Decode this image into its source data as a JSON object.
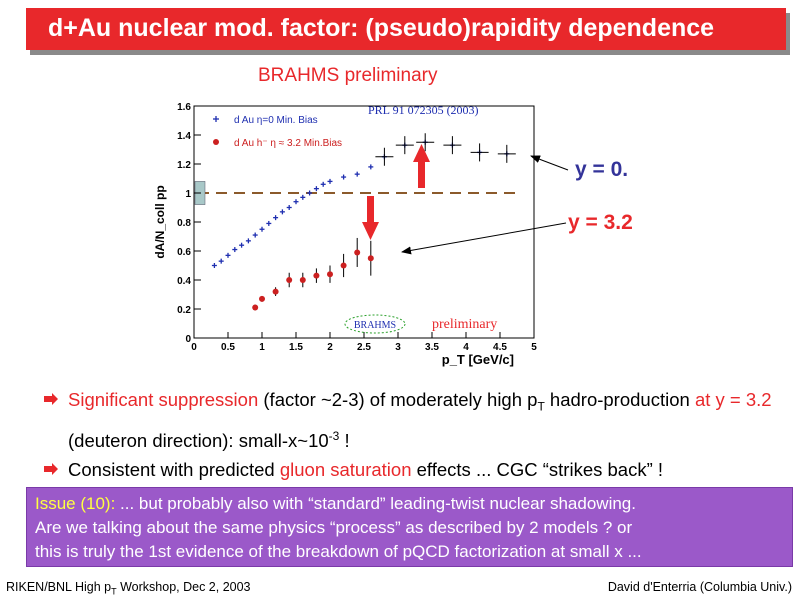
{
  "title": "d+Au nuclear mod. factor: (pseudo)rapidity dependence",
  "brahms_preliminary": "BRAHMS preliminary",
  "chart_data": {
    "type": "scatter",
    "xlabel": "p_T [GeV/c]",
    "ylabel": "dA/N_coll pp",
    "xlim": [
      0,
      5
    ],
    "ylim": [
      0,
      1.6
    ],
    "x_ticks": [
      "0",
      "0.5",
      "1",
      "1.5",
      "2",
      "2.5",
      "3",
      "3.5",
      "4",
      "4.5",
      "5"
    ],
    "y_ticks": [
      "0",
      "0.2",
      "0.4",
      "0.6",
      "0.8",
      "1",
      "1.2",
      "1.4",
      "1.6"
    ],
    "reference_line": 1.0,
    "annotation_ref": "PRL 91 072305 (2003)",
    "watermark_logo": "BRAHMS",
    "watermark_text": "preliminary",
    "series": [
      {
        "name": "d Au η=0 Min. Bias",
        "color": "#1f2fb0",
        "marker": "star",
        "points": [
          [
            0.3,
            0.5
          ],
          [
            0.4,
            0.53
          ],
          [
            0.5,
            0.57
          ],
          [
            0.6,
            0.61
          ],
          [
            0.7,
            0.64
          ],
          [
            0.8,
            0.67
          ],
          [
            0.9,
            0.71
          ],
          [
            1.0,
            0.75
          ],
          [
            1.1,
            0.79
          ],
          [
            1.2,
            0.83
          ],
          [
            1.3,
            0.87
          ],
          [
            1.4,
            0.9
          ],
          [
            1.5,
            0.94
          ],
          [
            1.6,
            0.97
          ],
          [
            1.7,
            1.0
          ],
          [
            1.8,
            1.03
          ],
          [
            1.9,
            1.06
          ],
          [
            2.0,
            1.08
          ],
          [
            2.2,
            1.11
          ],
          [
            2.4,
            1.13
          ],
          [
            2.6,
            1.18
          ],
          [
            2.8,
            1.25
          ],
          [
            3.1,
            1.33
          ],
          [
            3.4,
            1.35
          ],
          [
            3.8,
            1.33
          ],
          [
            4.2,
            1.28
          ],
          [
            4.6,
            1.27
          ]
        ]
      },
      {
        "name": "d Au h⁻ η ≈ 3.2 Min.Bias",
        "color": "#cc2020",
        "marker": "circle",
        "points": [
          [
            0.9,
            0.21,
            0.02
          ],
          [
            1.0,
            0.27,
            0.02
          ],
          [
            1.2,
            0.32,
            0.03
          ],
          [
            1.4,
            0.4,
            0.05
          ],
          [
            1.6,
            0.4,
            0.05
          ],
          [
            1.8,
            0.43,
            0.05
          ],
          [
            2.0,
            0.44,
            0.06
          ],
          [
            2.2,
            0.5,
            0.08
          ],
          [
            2.4,
            0.59,
            0.1
          ],
          [
            2.6,
            0.55,
            0.12
          ]
        ]
      }
    ]
  },
  "labels": {
    "y0": "y = 0.",
    "y32": "y = 3.2"
  },
  "bullets": {
    "b1_a": "Significant suppression",
    "b1_b": " (factor ~2-3) of moderately high p",
    "b1_sub": "T",
    "b1_c": " hadro-production ",
    "b1_d": "at y = 3.2",
    "b1_e": " (deuteron direction): small-x~10",
    "b1_sup": "-3",
    "b1_f": " !",
    "b2_a": " Consistent with predicted ",
    "b2_b": "gluon saturation",
    "b2_c": " effects ... CGC “strikes back” !"
  },
  "issue": {
    "label": "Issue (10):",
    "text1": "  ... but probably also with “standard” leading-twist nuclear shadowing.",
    "text2": "Are we talking about the same physics “process” as described by 2 models ? or",
    "text3": "this is truly the 1st evidence of the breakdown of pQCD factorization at small x ..."
  },
  "footer": {
    "left_a": "RIKEN/BNL High p",
    "left_sub": "T",
    "left_b": " Workshop, Dec 2, 2003",
    "right": "David d'Enterria (Columbia Univ.)"
  }
}
